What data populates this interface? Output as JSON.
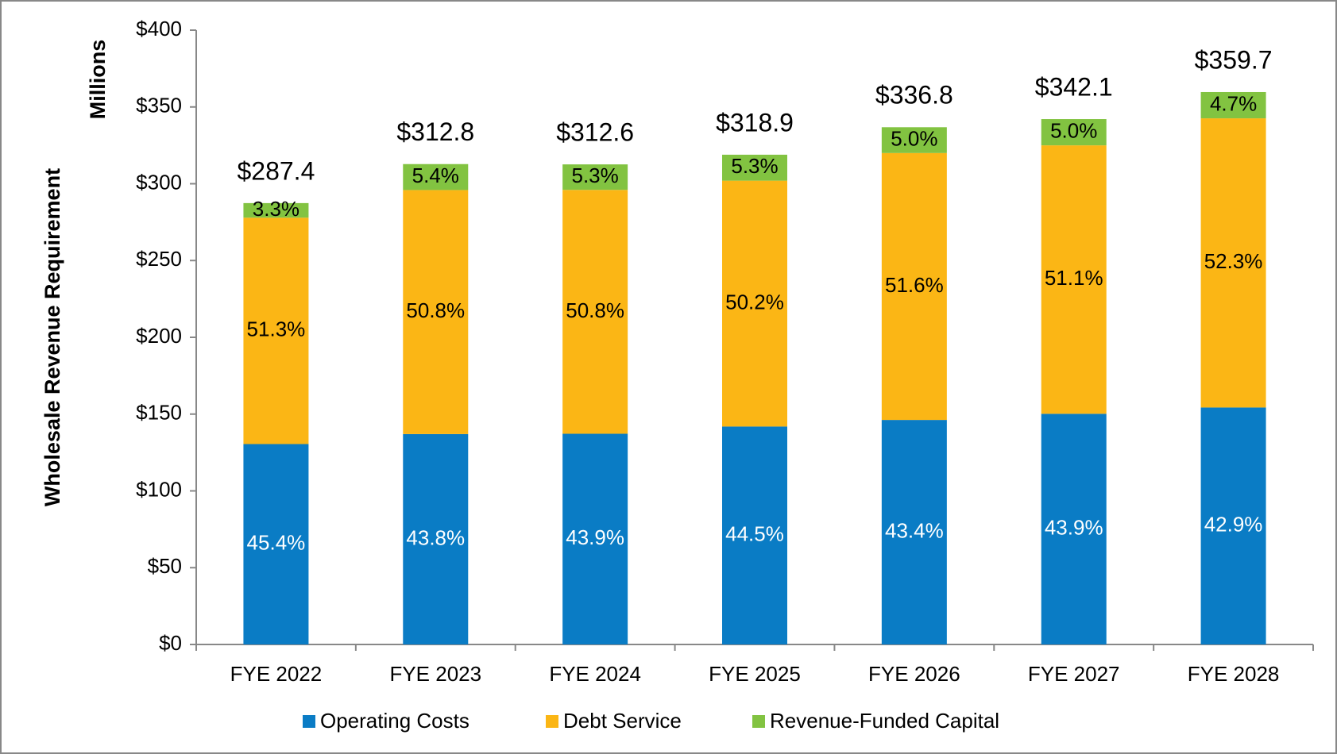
{
  "chart_data": {
    "type": "stacked_bar",
    "y_axis_label": "Wholesale Revenue Requirement",
    "y_unit_label": "Millions",
    "categories": [
      "FYE 2022",
      "FYE 2023",
      "FYE 2024",
      "FYE 2025",
      "FYE 2026",
      "FYE 2027",
      "FYE 2028"
    ],
    "series": [
      {
        "name": "Operating Costs",
        "color": "#0a7cc5",
        "label_color": "#ffffff",
        "values": [
          130.5,
          137.0,
          137.2,
          141.9,
          146.2,
          150.2,
          154.3
        ],
        "share_labels": [
          "45.4%",
          "43.8%",
          "43.9%",
          "44.5%",
          "43.4%",
          "43.9%",
          "42.9%"
        ]
      },
      {
        "name": "Debt Service",
        "color": "#fbb615",
        "label_color": "#000000",
        "values": [
          147.4,
          158.9,
          158.8,
          160.1,
          173.8,
          174.8,
          188.3
        ],
        "share_labels": [
          "51.3%",
          "50.8%",
          "50.8%",
          "50.2%",
          "51.6%",
          "51.1%",
          "52.3%"
        ]
      },
      {
        "name": "Revenue-Funded Capital",
        "color": "#82c341",
        "label_color": "#000000",
        "values": [
          9.5,
          16.9,
          16.6,
          16.9,
          16.8,
          17.1,
          17.1
        ],
        "share_labels": [
          "3.3%",
          "5.4%",
          "5.3%",
          "5.3%",
          "5.0%",
          "5.0%",
          "4.7%"
        ]
      }
    ],
    "total_labels": [
      "$287.4",
      "$312.8",
      "$312.6",
      "$318.9",
      "$336.8",
      "$342.1",
      "$359.7"
    ],
    "ylim": [
      0,
      400
    ],
    "yticks": [
      {
        "value": 0,
        "label": "$0"
      },
      {
        "value": 50,
        "label": "$50"
      },
      {
        "value": 100,
        "label": "$100"
      },
      {
        "value": 150,
        "label": "$150"
      },
      {
        "value": 200,
        "label": "$200"
      },
      {
        "value": 250,
        "label": "$250"
      },
      {
        "value": 300,
        "label": "$300"
      },
      {
        "value": 350,
        "label": "$350"
      },
      {
        "value": 400,
        "label": "$400"
      }
    ],
    "legend": "bottom"
  }
}
